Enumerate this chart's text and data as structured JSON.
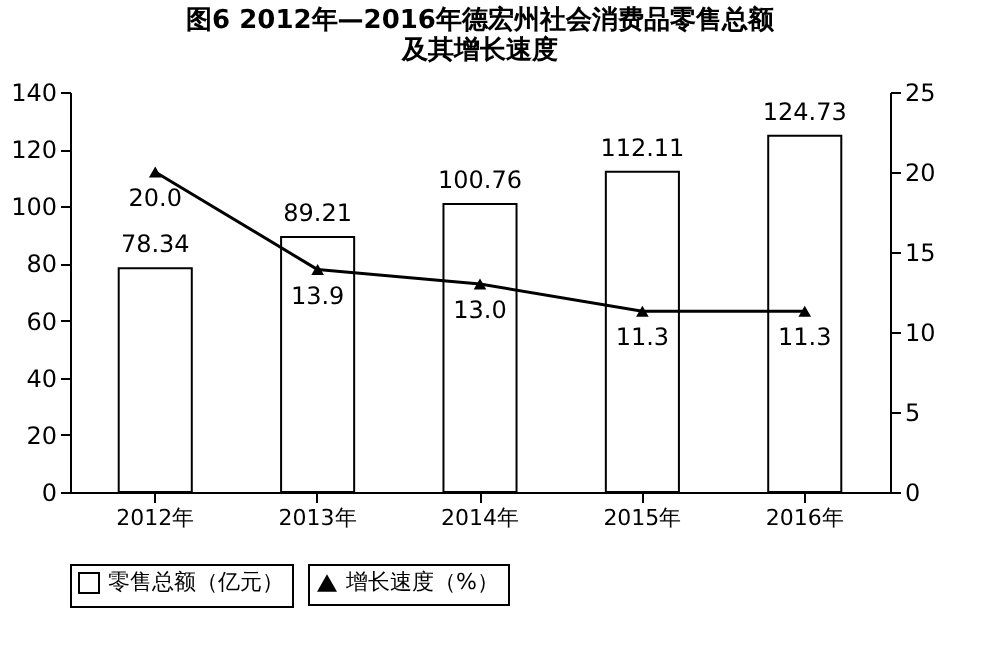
{
  "chart_data": {
    "type": "bar",
    "title": "图6 2012年—2016年德宏州社会消费品零售总额及其增长速度",
    "categories": [
      "2012年",
      "2013年",
      "2014年",
      "2015年",
      "2016年"
    ],
    "series": [
      {
        "name": "零售总额（亿元）",
        "color": "#ffffff",
        "values": [
          78.34,
          89.21,
          100.76,
          112.11,
          124.73
        ],
        "value_labels": [
          "78.34",
          "89.21",
          "100.76",
          "112.11",
          "124.73"
        ]
      },
      {
        "name": "增长速度（%）",
        "type": "line",
        "axis": "y2",
        "color": "#000000",
        "marker": "triangle",
        "line_style": "solid",
        "values": [
          20.0,
          13.9,
          13.0,
          11.3,
          11.3
        ],
        "value_labels": [
          "20.0",
          "13.9",
          "13.0",
          "11.3",
          "11.3"
        ]
      }
    ],
    "ylim": [
      0,
      140
    ],
    "yticks": [
      0,
      20,
      40,
      60,
      80,
      100,
      120,
      140
    ],
    "y2lim": [
      0,
      25
    ],
    "y2ticks": [
      0,
      5,
      10,
      15,
      20,
      25
    ],
    "legend": "bottom"
  }
}
